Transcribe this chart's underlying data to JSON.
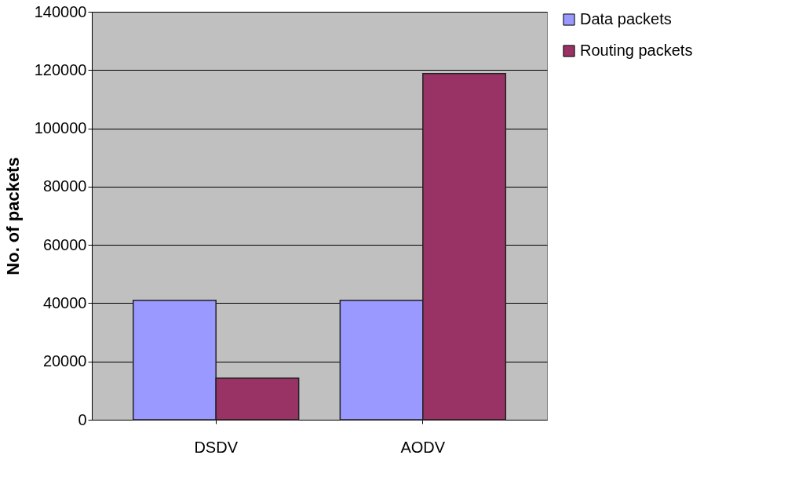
{
  "chart_data": {
    "type": "bar",
    "ylabel": "No. of packets",
    "categories": [
      "DSDV",
      "AODV"
    ],
    "series": [
      {
        "name": "Data packets",
        "color": "#9999ff",
        "values": [
          41000,
          41000
        ]
      },
      {
        "name": "Routing packets",
        "color": "#993366",
        "values": [
          14300,
          118800
        ]
      }
    ],
    "ylim": [
      0,
      140000
    ],
    "yticks": [
      0,
      20000,
      40000,
      60000,
      80000,
      100000,
      120000,
      140000
    ],
    "grid": "y",
    "legend": "right"
  }
}
